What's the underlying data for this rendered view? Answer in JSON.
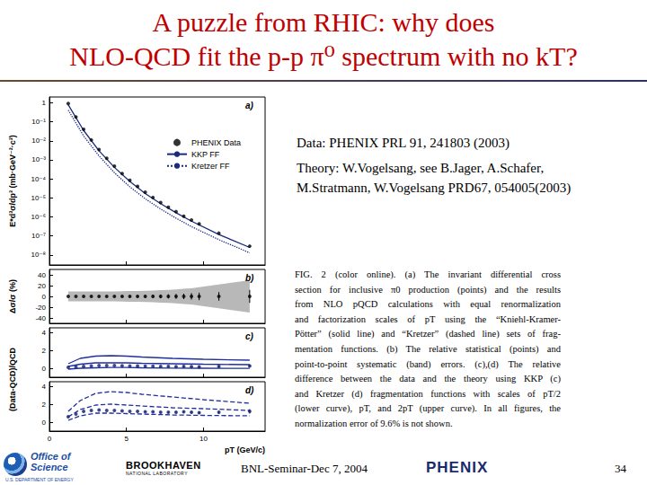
{
  "slide": {
    "title": [
      "A puzzle from RHIC: why does",
      "NLO-QCD fit the p-p π⁰ spectrum with no kT?"
    ],
    "data_note": "Data: PHENIX PRL 91, 241803 (2003)",
    "theory_note": [
      "Theory: W.Vogelsang, see B.Jager, A.Schafer,",
      "M.Stratmann, W.Vogelsang PRD67, 054005(2003)"
    ],
    "caption": [
      "FIG. 2 (color online). (a) The invariant differential cross",
      "section for inclusive π0 production (points) and the results",
      "from NLO pQCD calculations with equal renormalization",
      "and factorization scales of pT using the “Kniehl-Kramer-",
      "Pötter” (solid line) and “Kretzer” (dashed line) sets of frag-",
      "mentation functions. (b) The relative statistical (points) and",
      "point-to-point systematic (band) errors. (c),(d) The relative",
      "difference between the data and the theory using KKP (c)",
      "and Kretzer (d) fragmentation functions with scales of pT/2",
      "(lower curve), pT, and 2pT (upper curve). In all figures, the",
      "normalization error of 9.6% is not shown."
    ],
    "footer": "BNL-Seminar-Dec 7, 2004",
    "page": "34",
    "logos": {
      "doe": [
        "Office of",
        "Science"
      ],
      "doe_sub": "U.S. DEPARTMENT OF ENERGY",
      "bnl": "BROOKHAVEN",
      "bnl_sub": "NATIONAL LABORATORY",
      "phenix": "PHENIX"
    }
  },
  "chart_data": [
    {
      "type": "scatter",
      "title": "a)",
      "ylabel": "E*d³σ/dp³ (mb·GeV⁻²·c³)",
      "log": "y",
      "grid": false,
      "legend": "right",
      "tick_labels": "y",
      "xlim": [
        0,
        14
      ],
      "xticks": [
        0,
        5,
        10
      ],
      "ylim": [
        3e-09,
        2
      ],
      "yticks": [
        {
          "value": 1e-08,
          "label": "10⁻⁸"
        },
        {
          "value": 1e-07,
          "label": "10⁻⁷"
        },
        {
          "value": 1e-06,
          "label": "10⁻⁶"
        },
        {
          "value": 1e-05,
          "label": "10⁻⁵"
        },
        {
          "value": 0.0001,
          "label": "10⁻⁴"
        },
        {
          "value": 0.001,
          "label": "10⁻³"
        },
        {
          "value": 0.01,
          "label": "10⁻²"
        },
        {
          "value": 0.1,
          "label": "10⁻¹"
        },
        1
      ],
      "series": [
        {
          "name": "PHENIX Data",
          "type": "scatter",
          "marker": "circle",
          "color": "#000000",
          "x": [
            1.22,
            1.72,
            2.22,
            2.72,
            3.22,
            3.72,
            4.22,
            4.72,
            5.22,
            5.72,
            6.22,
            6.72,
            7.22,
            7.72,
            8.22,
            8.72,
            9.22,
            9.72,
            11.0,
            13.0
          ],
          "values": [
            0.9,
            0.18,
            0.04,
            0.011,
            0.0035,
            0.0012,
            0.00046,
            0.00019,
            8.4e-05,
            4e-05,
            2e-05,
            1.05e-05,
            5.7e-06,
            3.2e-06,
            1.9e-06,
            1.1e-06,
            6.9e-07,
            4.3e-07,
            1.4e-07,
            2.9e-08
          ]
        },
        {
          "name": "KKP FF",
          "type": "line",
          "line_style": "solid",
          "color": "#1a2a80",
          "x": [
            1.22,
            2.22,
            3.22,
            4.22,
            5.22,
            6.22,
            7.22,
            8.22,
            9.22,
            11.0,
            13.0
          ],
          "values": [
            0.78,
            0.035,
            0.003,
            0.0004,
            7.3e-05,
            1.7e-05,
            5e-06,
            1.65e-06,
            6e-07,
            1.2e-07,
            2.5e-08
          ]
        },
        {
          "name": "Kretzer FF",
          "type": "line",
          "line_style": "dotted",
          "color": "#1a2a80",
          "x": [
            1.22,
            2.22,
            3.22,
            4.22,
            5.22,
            6.22,
            7.22,
            8.22,
            9.22,
            11.0,
            13.0
          ],
          "values": [
            0.41,
            0.018,
            0.0016,
            0.00021,
            3.8e-05,
            9e-06,
            2.6e-06,
            8.6e-07,
            3.1e-07,
            6.4e-08,
            1.3e-08
          ]
        }
      ]
    },
    {
      "type": "scatter",
      "title": "b)",
      "ylabel": "Δσ/σ (%)",
      "grid": false,
      "tick_labels": "y",
      "xlim": [
        0,
        14
      ],
      "xticks": [
        0,
        5,
        10
      ],
      "ylim": [
        -50,
        50
      ],
      "yticks": [
        -40,
        -20,
        0,
        20,
        40
      ],
      "series": [
        {
          "type": "band",
          "color": "#b8b8b8",
          "x": [
            1.22,
            1.72,
            2.22,
            2.72,
            3.22,
            3.72,
            4.22,
            4.72,
            5.22,
            5.72,
            6.22,
            6.72,
            7.22,
            7.72,
            8.22,
            8.72,
            9.22,
            9.72,
            11.0,
            13.0
          ],
          "values": [
            0,
            0,
            0,
            0,
            0,
            0,
            0,
            0,
            0,
            0,
            0,
            0,
            0,
            0,
            0,
            0,
            0,
            0,
            0,
            0
          ],
          "errors": [
            9,
            9,
            9,
            9,
            9,
            9,
            9,
            9.5,
            10,
            10,
            10.5,
            11,
            11.5,
            12,
            13,
            14,
            15,
            17,
            22,
            30
          ]
        },
        {
          "type": "scatter",
          "marker": "circle",
          "color": "#000000",
          "x": [
            1.22,
            1.72,
            2.22,
            2.72,
            3.22,
            3.72,
            4.22,
            4.72,
            5.22,
            5.72,
            6.22,
            6.72,
            7.22,
            7.72,
            8.22,
            8.72,
            9.22,
            9.72,
            11.0,
            13.0
          ],
          "values": [
            0,
            0,
            0,
            0,
            0,
            0,
            0,
            0,
            0,
            0,
            0,
            0,
            0,
            0,
            0,
            0,
            0,
            0,
            0,
            0
          ],
          "errors": [
            0.5,
            0.5,
            0.6,
            0.7,
            0.8,
            1,
            1.2,
            1.5,
            1.8,
            2.2,
            2.6,
            3,
            3.5,
            4,
            4.5,
            5,
            6,
            7,
            8,
            12
          ]
        }
      ]
    },
    {
      "type": "scatter",
      "title": "c)",
      "ylabel": "(Data-QCD)/QCD",
      "grid": false,
      "tick_labels": "y",
      "xlim": [
        0,
        14
      ],
      "xticks": [
        0,
        5,
        10
      ],
      "ylim": [
        -1,
        4.5
      ],
      "yticks": [
        0,
        2,
        4
      ],
      "series": [
        {
          "type": "line",
          "line_style": "solid",
          "color": "#1f2fa0",
          "x": [
            1.22,
            2,
            3,
            4,
            5,
            6,
            8,
            10,
            13
          ],
          "values": [
            -0.1,
            0.0,
            0.05,
            0.08,
            0.08,
            0.05,
            0.02,
            0.0,
            -0.02
          ]
        },
        {
          "type": "line",
          "line_style": "solid",
          "color": "#1f2fa0",
          "x": [
            1.22,
            2,
            3,
            4,
            5,
            6,
            8,
            10,
            13
          ],
          "values": [
            0.2,
            0.45,
            0.6,
            0.62,
            0.6,
            0.55,
            0.5,
            0.45,
            0.4
          ]
        },
        {
          "type": "line",
          "line_style": "solid",
          "color": "#1f2fa0",
          "x": [
            1.22,
            2,
            3,
            4,
            5,
            6,
            8,
            10,
            13
          ],
          "values": [
            0.5,
            1.1,
            1.35,
            1.4,
            1.35,
            1.25,
            1.1,
            1.0,
            0.9
          ]
        },
        {
          "type": "scatter",
          "marker": "circle",
          "color": "#14206e",
          "x": [
            1.22,
            1.72,
            2.22,
            2.72,
            3.22,
            3.72,
            4.22,
            4.72,
            5.22,
            5.72,
            6.22,
            6.72,
            7.22,
            7.72,
            8.22,
            8.72,
            9.22,
            9.72,
            11.0,
            13.0
          ],
          "values": [
            0.1,
            0.15,
            0.2,
            0.25,
            0.3,
            0.3,
            0.3,
            0.28,
            0.25,
            0.25,
            0.22,
            0.22,
            0.2,
            0.2,
            0.18,
            0.2,
            0.18,
            0.15,
            0.2,
            0.25
          ],
          "errors": [
            0.02,
            0.02,
            0.02,
            0.02,
            0.02,
            0.02,
            0.02,
            0.03,
            0.03,
            0.03,
            0.04,
            0.04,
            0.05,
            0.05,
            0.06,
            0.07,
            0.08,
            0.09,
            0.1,
            0.15
          ]
        }
      ]
    },
    {
      "type": "scatter",
      "title": "d)",
      "xlabel": "pT (GeV/c)",
      "grid": false,
      "xlim": [
        0,
        14
      ],
      "xticks": [
        0,
        5,
        10
      ],
      "ylim": [
        -1,
        4.5
      ],
      "yticks": [
        0,
        2,
        4
      ],
      "series": [
        {
          "type": "line",
          "line_style": "dashed",
          "color": "#1f2fa0",
          "x": [
            1.22,
            2,
            3,
            4,
            5,
            6,
            8,
            10,
            13
          ],
          "values": [
            0.2,
            0.7,
            1.0,
            1.0,
            0.95,
            0.9,
            0.8,
            0.75,
            0.7
          ]
        },
        {
          "type": "line",
          "line_style": "dashed",
          "color": "#1f2fa0",
          "x": [
            1.22,
            2,
            3,
            4,
            5,
            6,
            8,
            10,
            13
          ],
          "values": [
            0.6,
            1.4,
            1.9,
            2.0,
            1.9,
            1.8,
            1.6,
            1.5,
            1.3
          ]
        },
        {
          "type": "line",
          "line_style": "dashed",
          "color": "#1f2fa0",
          "x": [
            1.22,
            2,
            3,
            4,
            5,
            6,
            8,
            10,
            13
          ],
          "values": [
            1.2,
            2.4,
            3.2,
            3.4,
            3.3,
            3.1,
            2.8,
            2.5,
            2.1
          ]
        },
        {
          "type": "scatter",
          "marker": "circle",
          "color": "#14206e",
          "x": [
            1.22,
            1.72,
            2.22,
            2.72,
            3.22,
            3.72,
            4.22,
            4.72,
            5.22,
            5.72,
            6.22,
            6.72,
            7.22,
            7.72,
            8.22,
            8.72,
            9.22,
            9.72,
            11.0,
            13.0
          ],
          "values": [
            0.6,
            0.9,
            1.2,
            1.3,
            1.35,
            1.3,
            1.3,
            1.25,
            1.2,
            1.2,
            1.15,
            1.15,
            1.1,
            1.1,
            1.1,
            1.15,
            1.1,
            1.05,
            1.1,
            1.2
          ],
          "errors": [
            0.03,
            0.03,
            0.03,
            0.03,
            0.03,
            0.03,
            0.03,
            0.04,
            0.04,
            0.05,
            0.06,
            0.06,
            0.07,
            0.08,
            0.09,
            0.1,
            0.12,
            0.14,
            0.16,
            0.25
          ]
        }
      ]
    }
  ]
}
